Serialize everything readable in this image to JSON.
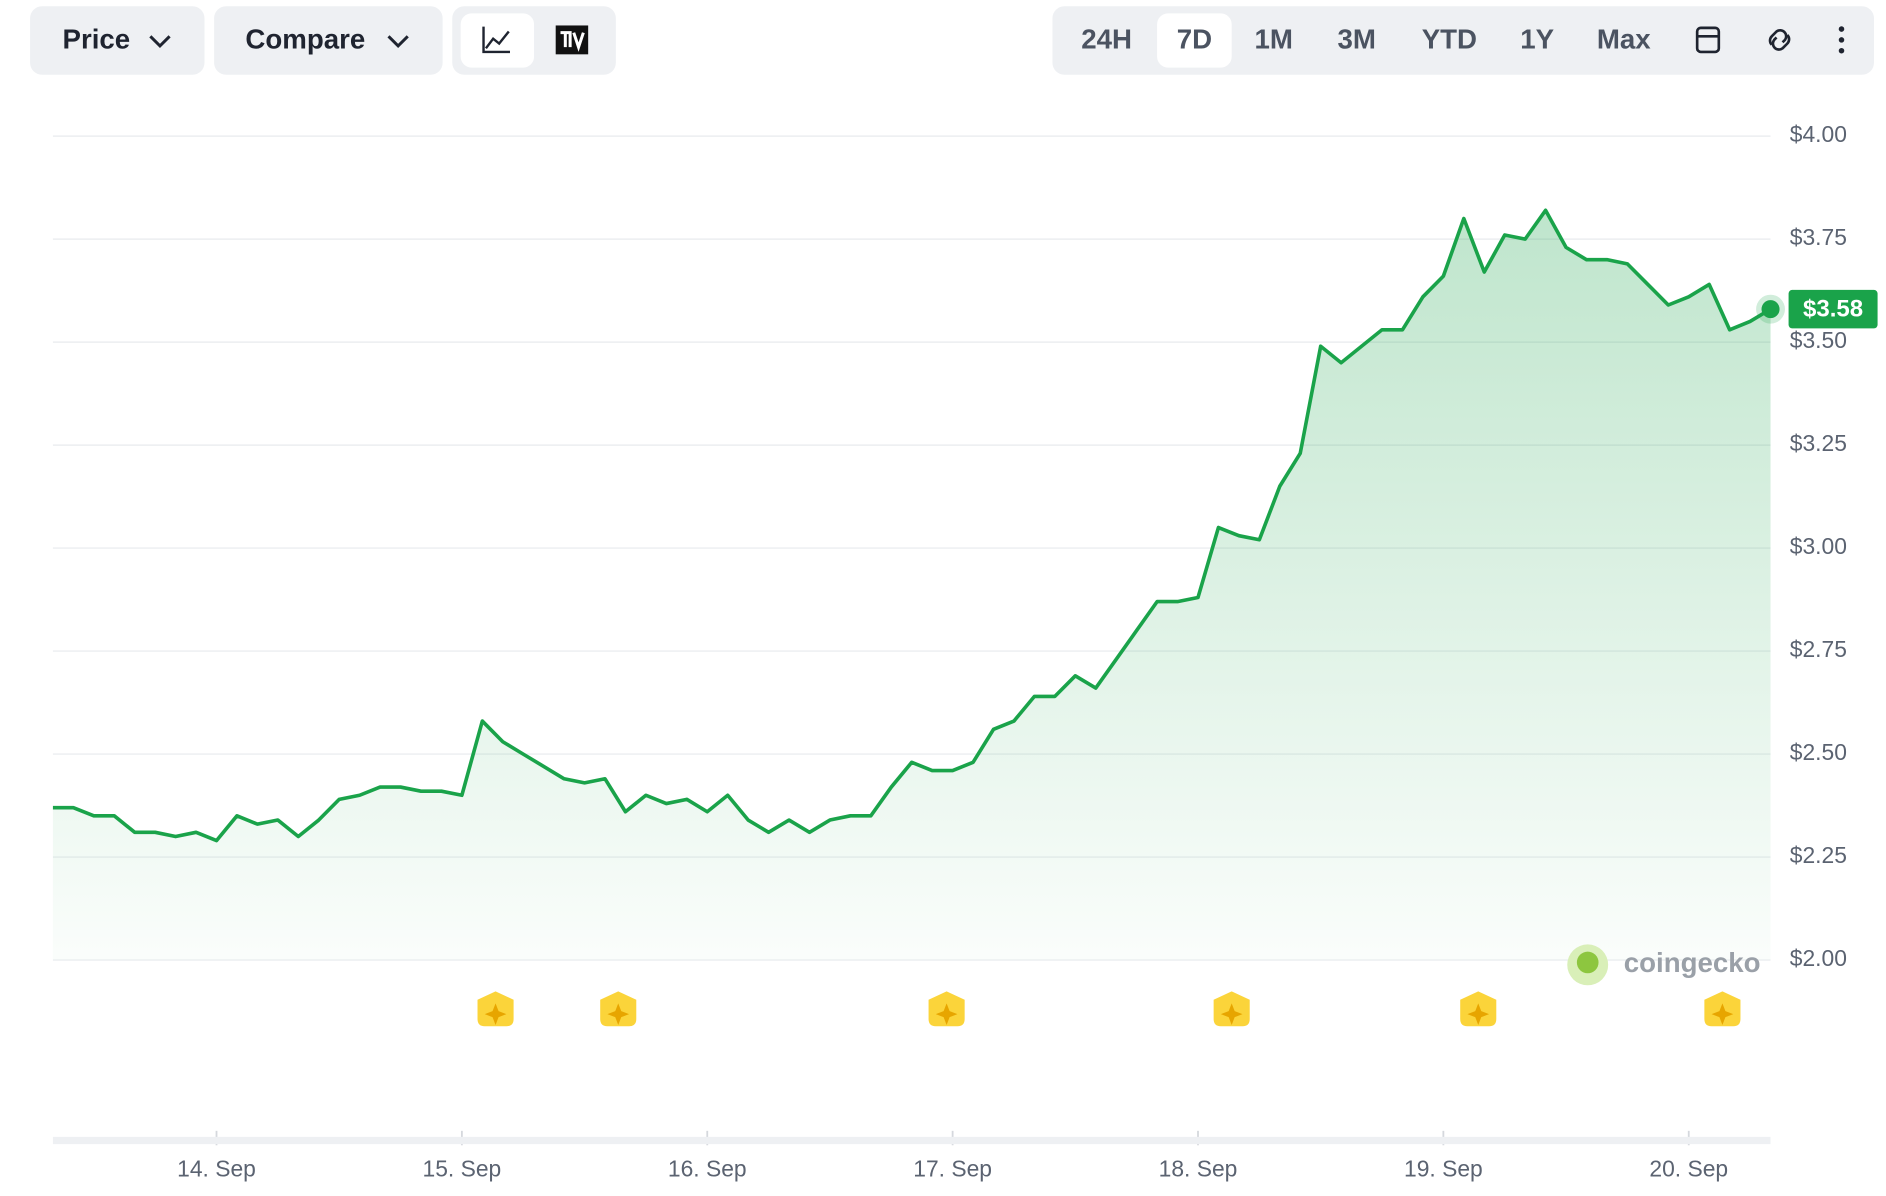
{
  "toolbar": {
    "price_button": "Price",
    "compare_button": "Compare",
    "ranges": [
      "24H",
      "7D",
      "1M",
      "3M",
      "YTD",
      "1Y",
      "Max"
    ],
    "active_range": "7D"
  },
  "watermark": "coingecko",
  "chart_data": {
    "type": "line",
    "color": "#1aa34a",
    "values": [
      2.37,
      2.37,
      2.35,
      2.35,
      2.31,
      2.31,
      2.3,
      2.31,
      2.29,
      2.35,
      2.33,
      2.34,
      2.3,
      2.34,
      2.39,
      2.4,
      2.42,
      2.42,
      2.41,
      2.41,
      2.4,
      2.58,
      2.53,
      2.5,
      2.47,
      2.44,
      2.43,
      2.44,
      2.36,
      2.4,
      2.38,
      2.39,
      2.36,
      2.4,
      2.34,
      2.31,
      2.34,
      2.31,
      2.34,
      2.35,
      2.35,
      2.42,
      2.48,
      2.46,
      2.46,
      2.48,
      2.56,
      2.58,
      2.64,
      2.64,
      2.69,
      2.66,
      2.73,
      2.8,
      2.87,
      2.87,
      2.88,
      3.05,
      3.03,
      3.02,
      3.15,
      3.23,
      3.49,
      3.45,
      3.49,
      3.53,
      3.53,
      3.61,
      3.66,
      3.8,
      3.67,
      3.76,
      3.75,
      3.82,
      3.73,
      3.7,
      3.7,
      3.69,
      3.64,
      3.59,
      3.61,
      3.64,
      3.53,
      3.55,
      3.58
    ],
    "current_price": {
      "value": 3.58,
      "label": "$3.58"
    },
    "xlim": [
      0,
      84
    ],
    "xticks": [
      {
        "value": 8,
        "label": "14. Sep"
      },
      {
        "value": 20,
        "label": "15. Sep"
      },
      {
        "value": 32,
        "label": "16. Sep"
      },
      {
        "value": 44,
        "label": "17. Sep"
      },
      {
        "value": 56,
        "label": "18. Sep"
      },
      {
        "value": 68,
        "label": "19. Sep"
      },
      {
        "value": 80,
        "label": "20. Sep"
      }
    ],
    "ylim": [
      2,
      4
    ],
    "yticks": [
      {
        "value": 2,
        "label": "$2.00"
      },
      {
        "value": 2.25,
        "label": "$2.25"
      },
      {
        "value": 2.5,
        "label": "$2.50"
      },
      {
        "value": 2.75,
        "label": "$2.75"
      },
      {
        "value": 3,
        "label": "$3.00"
      },
      {
        "value": 3.25,
        "label": "$3.25"
      },
      {
        "value": 3.5,
        "label": "$3.50"
      },
      {
        "value": 3.75,
        "label": "$3.75"
      },
      {
        "value": 4,
        "label": "$4.00"
      }
    ],
    "grid": true
  }
}
